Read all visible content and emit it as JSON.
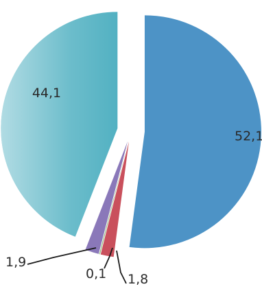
{
  "chart_data": {
    "type": "pie",
    "title": "",
    "legend": "none",
    "exploded": true,
    "slices": [
      {
        "label": "52,1",
        "value": 52.1,
        "color": "#4d93c6"
      },
      {
        "label": "1,8",
        "value": 1.8,
        "color": "#c9505c"
      },
      {
        "label": "0,1",
        "value": 0.1,
        "color": "#7fae62"
      },
      {
        "label": "1,9",
        "value": 1.9,
        "color": "#8a78b9"
      },
      {
        "label": "44,1",
        "value": 44.1,
        "color": "#52b1c2"
      }
    ]
  }
}
